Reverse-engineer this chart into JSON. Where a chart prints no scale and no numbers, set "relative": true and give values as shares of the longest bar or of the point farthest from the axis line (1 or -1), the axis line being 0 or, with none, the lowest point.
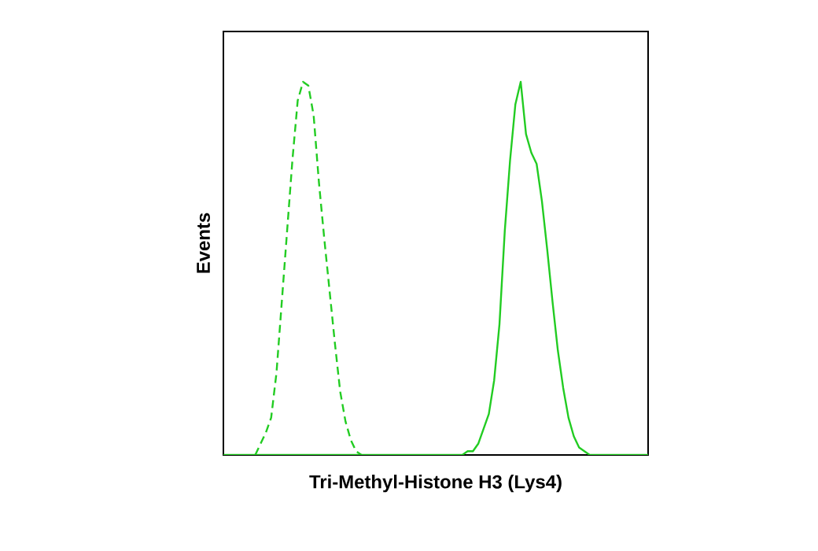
{
  "chart_data": {
    "type": "line",
    "relative": true,
    "marker": "none",
    "xlabel": "Tri-Methyl-Histone H3 (Lys4)",
    "ylabel": "Events",
    "categories": [
      null,
      null,
      null,
      null,
      null,
      null,
      null,
      null,
      null,
      null,
      null,
      null,
      null,
      null,
      null,
      null,
      null,
      null,
      null,
      null,
      null,
      null,
      null,
      null,
      null,
      null,
      null,
      null,
      null,
      null,
      null,
      null,
      null,
      null,
      null,
      null,
      null,
      null,
      null,
      null,
      null,
      null,
      null,
      null,
      null,
      null,
      null,
      null,
      null,
      null,
      null,
      null,
      null,
      null,
      null,
      null,
      null,
      null,
      null,
      null,
      null,
      null,
      null,
      null,
      null,
      null,
      null,
      null,
      null,
      null,
      null,
      null,
      null,
      null,
      null,
      null,
      null,
      null,
      null,
      null,
      null
    ],
    "series": [
      {
        "color": "#22cc22",
        "line_style": "dashed",
        "values": [
          null,
          null,
          null,
          null,
          null,
          null,
          0,
          0.03,
          0.06,
          0.1,
          0.22,
          0.41,
          0.6,
          0.79,
          0.95,
          1.0,
          0.99,
          0.91,
          0.73,
          0.58,
          0.44,
          0.3,
          0.17,
          0.09,
          0.04,
          0.01,
          0,
          null,
          null,
          null,
          null,
          null,
          null,
          null,
          null,
          null,
          null,
          null,
          null,
          null,
          null,
          null,
          null,
          null,
          null,
          null,
          null,
          null,
          null,
          null,
          null,
          null,
          null,
          null,
          null,
          null,
          null,
          null,
          null,
          null,
          null,
          null,
          null,
          null,
          null,
          null,
          null,
          null,
          null,
          null,
          null,
          null,
          null,
          null,
          null,
          null,
          null,
          null,
          null,
          null,
          null
        ]
      },
      {
        "color": "#22cc22",
        "line_style": "solid",
        "values": [
          0,
          0,
          0,
          0,
          0,
          0,
          0,
          0,
          0,
          0,
          0,
          0,
          0,
          0,
          0,
          0,
          0,
          0,
          0,
          0,
          0,
          0,
          0,
          0,
          0,
          0,
          0,
          0,
          0,
          0,
          0,
          0,
          0,
          0,
          0,
          0,
          0,
          0,
          0,
          0,
          0,
          0,
          0,
          0,
          0,
          0,
          0.01,
          0.01,
          0.03,
          0.07,
          0.11,
          0.2,
          0.35,
          0.6,
          0.79,
          0.94,
          1.0,
          0.86,
          0.81,
          0.78,
          0.68,
          0.55,
          0.41,
          0.28,
          0.18,
          0.1,
          0.05,
          0.02,
          0.01,
          0,
          0,
          0,
          0,
          0,
          0,
          0,
          0,
          0,
          0,
          0,
          0
        ]
      }
    ]
  }
}
